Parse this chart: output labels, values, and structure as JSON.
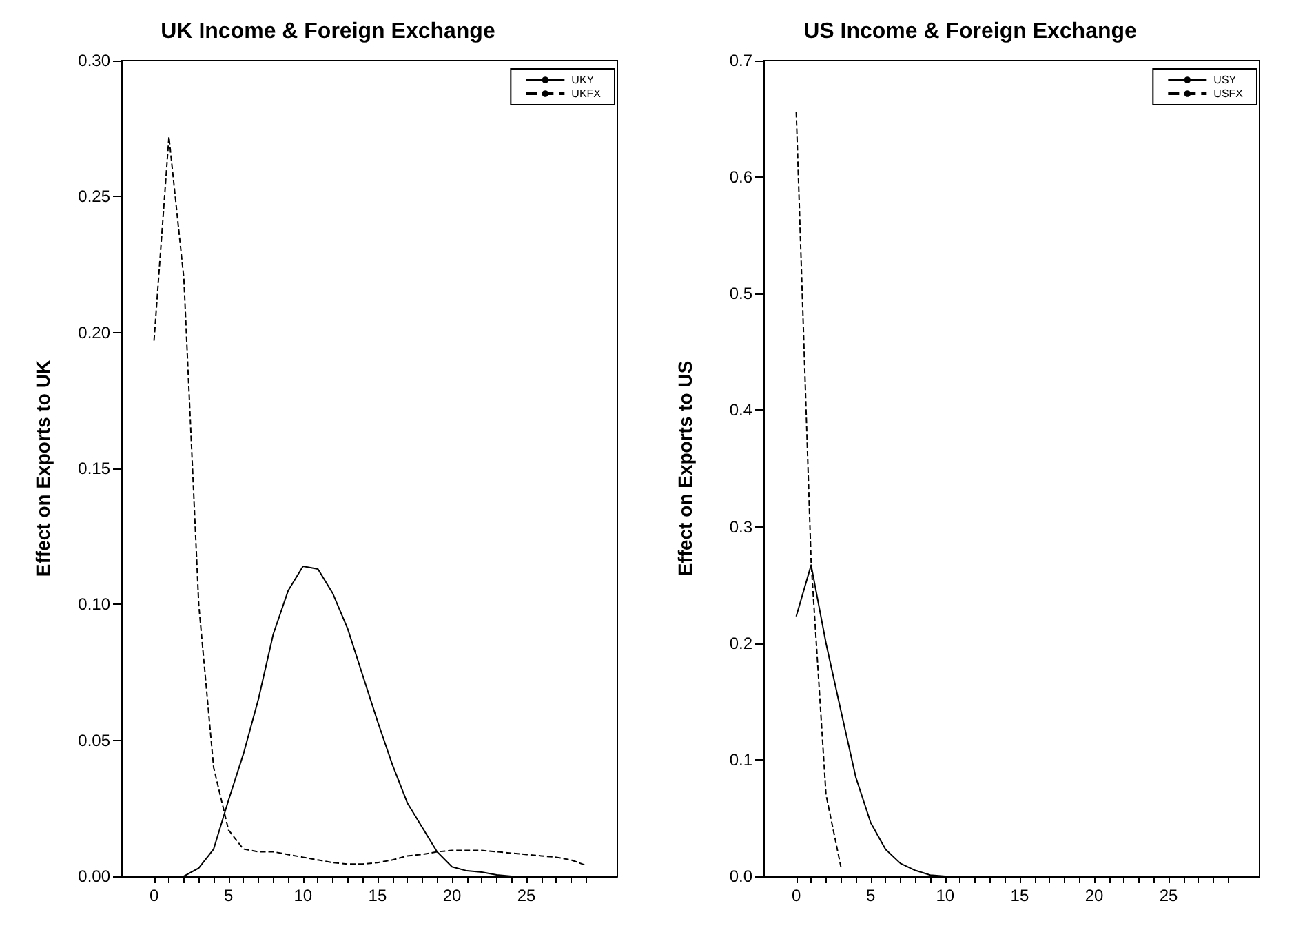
{
  "chart_data": [
    {
      "type": "line",
      "title": "UK Income & Foreign Exchange",
      "ylabel": "Effect on Exports to UK",
      "legend": "top right",
      "xlim": [
        -2.2,
        31.1
      ],
      "ylim": [
        0,
        0.3
      ],
      "xticks": [
        0,
        {
          "value": 1,
          "label": null
        },
        {
          "value": 2,
          "label": null
        },
        {
          "value": 3,
          "label": null
        },
        {
          "value": 4,
          "label": null
        },
        5,
        {
          "value": 6,
          "label": null
        },
        {
          "value": 7,
          "label": null
        },
        {
          "value": 8,
          "label": null
        },
        {
          "value": 9,
          "label": null
        },
        10,
        {
          "value": 11,
          "label": null
        },
        {
          "value": 12,
          "label": null
        },
        {
          "value": 13,
          "label": null
        },
        {
          "value": 14,
          "label": null
        },
        15,
        {
          "value": 16,
          "label": null
        },
        {
          "value": 17,
          "label": null
        },
        {
          "value": 18,
          "label": null
        },
        {
          "value": 19,
          "label": null
        },
        20,
        {
          "value": 21,
          "label": null
        },
        {
          "value": 22,
          "label": null
        },
        {
          "value": 23,
          "label": null
        },
        {
          "value": 24,
          "label": null
        },
        25,
        {
          "value": 26,
          "label": null
        },
        {
          "value": 27,
          "label": null
        },
        {
          "value": 28,
          "label": null
        },
        {
          "value": 29,
          "label": null
        }
      ],
      "yticks": [
        {
          "value": 0,
          "label": "0.00"
        },
        {
          "value": 0.05,
          "label": "0.05"
        },
        {
          "value": 0.1,
          "label": "0.10"
        },
        {
          "value": 0.15,
          "label": "0.15"
        },
        {
          "value": 0.2,
          "label": "0.20"
        },
        {
          "value": 0.25,
          "label": "0.25"
        },
        {
          "value": 0.3,
          "label": "0.30"
        }
      ],
      "series": [
        {
          "name": "UKY",
          "color": "#000000",
          "line_style": "solid",
          "x": [
            2,
            3,
            4,
            5,
            6,
            7,
            8,
            9,
            10,
            11,
            12,
            13,
            14,
            15,
            16,
            17,
            18,
            19,
            20,
            21,
            22,
            23,
            24,
            25,
            26,
            27,
            28,
            29
          ],
          "values": [
            0,
            0.003,
            0.01,
            0.028,
            0.045,
            0.065,
            0.089,
            0.105,
            0.114,
            0.113,
            0.104,
            0.091,
            0.074,
            0.057,
            0.041,
            0.027,
            0.018,
            0.009,
            0.0035,
            0.002,
            0.0015,
            0.0005,
            0,
            0,
            0,
            0,
            0,
            0
          ]
        },
        {
          "name": "UKFX",
          "color": "#000000",
          "line_style": "dashed",
          "x": [
            0,
            1,
            2,
            3,
            4,
            5,
            6,
            7,
            8,
            9,
            10,
            11,
            12,
            13,
            14,
            15,
            16,
            17,
            18,
            19,
            20,
            21,
            22,
            23,
            24,
            25,
            26,
            27,
            28,
            29
          ],
          "values": [
            0.197,
            0.272,
            0.22,
            0.1,
            0.04,
            0.017,
            0.01,
            0.009,
            0.009,
            0.008,
            0.007,
            0.006,
            0.005,
            0.0045,
            0.0045,
            0.005,
            0.006,
            0.0075,
            0.008,
            0.009,
            0.0095,
            0.0095,
            0.0095,
            0.009,
            0.0085,
            0.008,
            0.0075,
            0.007,
            0.006,
            0.004
          ]
        }
      ]
    },
    {
      "type": "line",
      "title": "US Income & Foreign Exchange",
      "ylabel": "Effect on Exports to US",
      "legend": "top right",
      "xlim": [
        -2.2,
        31.1
      ],
      "ylim": [
        0,
        0.7
      ],
      "xticks": [
        0,
        {
          "value": 1,
          "label": null
        },
        {
          "value": 2,
          "label": null
        },
        {
          "value": 3,
          "label": null
        },
        {
          "value": 4,
          "label": null
        },
        5,
        {
          "value": 6,
          "label": null
        },
        {
          "value": 7,
          "label": null
        },
        {
          "value": 8,
          "label": null
        },
        {
          "value": 9,
          "label": null
        },
        10,
        {
          "value": 11,
          "label": null
        },
        {
          "value": 12,
          "label": null
        },
        {
          "value": 13,
          "label": null
        },
        {
          "value": 14,
          "label": null
        },
        15,
        {
          "value": 16,
          "label": null
        },
        {
          "value": 17,
          "label": null
        },
        {
          "value": 18,
          "label": null
        },
        {
          "value": 19,
          "label": null
        },
        20,
        {
          "value": 21,
          "label": null
        },
        {
          "value": 22,
          "label": null
        },
        {
          "value": 23,
          "label": null
        },
        {
          "value": 24,
          "label": null
        },
        25,
        {
          "value": 26,
          "label": null
        },
        {
          "value": 27,
          "label": null
        },
        {
          "value": 28,
          "label": null
        },
        {
          "value": 29,
          "label": null
        }
      ],
      "yticks": [
        {
          "value": 0,
          "label": "0.0"
        },
        {
          "value": 0.1,
          "label": "0.1"
        },
        {
          "value": 0.2,
          "label": "0.2"
        },
        {
          "value": 0.3,
          "label": "0.3"
        },
        {
          "value": 0.4,
          "label": "0.4"
        },
        {
          "value": 0.5,
          "label": "0.5"
        },
        {
          "value": 0.6,
          "label": "0.6"
        },
        {
          "value": 0.7,
          "label": "0.7"
        }
      ],
      "series": [
        {
          "name": "USY",
          "color": "#000000",
          "line_style": "solid",
          "x": [
            0,
            1,
            2,
            3,
            4,
            5,
            6,
            7,
            8,
            9,
            10,
            11,
            12,
            13,
            14,
            15,
            16,
            17,
            18,
            19,
            20,
            21,
            22,
            23,
            24,
            25,
            26,
            27,
            28,
            29
          ],
          "values": [
            0.223,
            0.267,
            0.2,
            0.142,
            0.085,
            0.046,
            0.023,
            0.011,
            0.005,
            0.001,
            0,
            0,
            0,
            0,
            0,
            0,
            0,
            0,
            0,
            0,
            0,
            0,
            0,
            0,
            0,
            0,
            0,
            0,
            0,
            0
          ]
        },
        {
          "name": "USFX",
          "color": "#000000",
          "line_style": "dashed",
          "x": [
            0,
            1,
            2,
            3
          ],
          "values": [
            0.656,
            0.27,
            0.07,
            0.008
          ]
        }
      ]
    }
  ]
}
